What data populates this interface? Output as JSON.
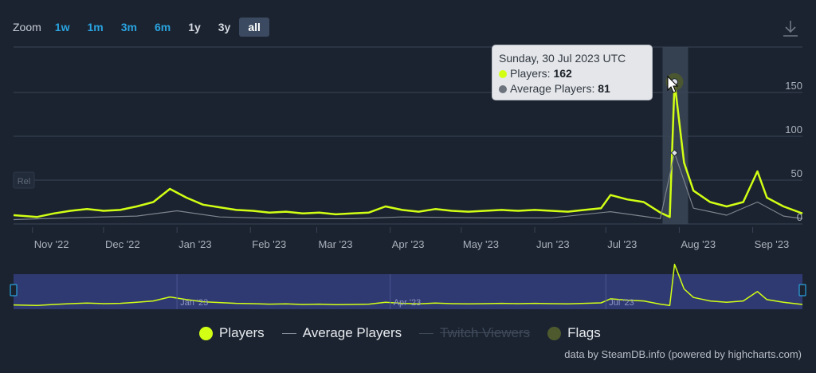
{
  "zoom": {
    "label": "Zoom",
    "buttons": [
      {
        "label": "1w",
        "kind": "short",
        "active": false
      },
      {
        "label": "1m",
        "kind": "short",
        "active": false
      },
      {
        "label": "3m",
        "kind": "short",
        "active": false
      },
      {
        "label": "6m",
        "kind": "short",
        "active": false
      },
      {
        "label": "1y",
        "kind": "long",
        "active": false
      },
      {
        "label": "3y",
        "kind": "long",
        "active": false
      },
      {
        "label": "all",
        "kind": "long",
        "active": true
      }
    ]
  },
  "tooltip": {
    "date": "Sunday, 30 Jul 2023 UTC",
    "players_label": "Players: ",
    "players_value": "162",
    "avg_label": "Average Players: ",
    "avg_value": "81"
  },
  "legend": {
    "players": "Players",
    "average": "Average Players",
    "twitch": "Twitch Viewers",
    "flags": "Flags"
  },
  "rel_label": "Rel",
  "credits": "data by SteamDB.info (powered by highcharts.com)",
  "colors": {
    "background": "#1b2330",
    "players": "#d2ff14",
    "average": "#7d848e",
    "navigator_fill": "#303a72",
    "grid": "#3a4455",
    "flags": "#4e5a2e"
  },
  "icons": {
    "download": "download-icon",
    "cursor": "cursor-pointer-icon"
  },
  "chart_data": {
    "type": "line",
    "x_range": [
      "2022-10-24",
      "2023-09-22"
    ],
    "ylim": [
      0,
      200
    ],
    "y_ticks": [
      0,
      50,
      100,
      150
    ],
    "x_ticks": [
      {
        "date": "2022-11-01",
        "label": "Nov '22"
      },
      {
        "date": "2022-12-01",
        "label": "Dec '22"
      },
      {
        "date": "2023-01-01",
        "label": "Jan '23"
      },
      {
        "date": "2023-02-01",
        "label": "Feb '23"
      },
      {
        "date": "2023-03-01",
        "label": "Mar '23"
      },
      {
        "date": "2023-04-01",
        "label": "Apr '23"
      },
      {
        "date": "2023-05-01",
        "label": "May '23"
      },
      {
        "date": "2023-06-01",
        "label": "Jun '23"
      },
      {
        "date": "2023-07-01",
        "label": "Jul '23"
      },
      {
        "date": "2023-08-01",
        "label": "Aug '23"
      },
      {
        "date": "2023-09-01",
        "label": "Sep '23"
      }
    ],
    "navigator_ticks": [
      {
        "date": "2023-01-01",
        "label": "Jan '23"
      },
      {
        "date": "2023-04-01",
        "label": "Apr '23"
      },
      {
        "date": "2023-07-01",
        "label": "Jul '23"
      }
    ],
    "highlight": {
      "date": "2023-07-30",
      "players": 162,
      "average": 81
    },
    "series": [
      {
        "name": "Players",
        "points": [
          [
            "2022-10-24",
            10
          ],
          [
            "2022-11-03",
            8
          ],
          [
            "2022-11-10",
            12
          ],
          [
            "2022-11-17",
            15
          ],
          [
            "2022-11-24",
            17
          ],
          [
            "2022-12-01",
            15
          ],
          [
            "2022-12-08",
            16
          ],
          [
            "2022-12-15",
            20
          ],
          [
            "2022-12-22",
            25
          ],
          [
            "2022-12-29",
            40
          ],
          [
            "2023-01-05",
            30
          ],
          [
            "2023-01-12",
            22
          ],
          [
            "2023-01-19",
            19
          ],
          [
            "2023-01-26",
            16
          ],
          [
            "2023-02-02",
            15
          ],
          [
            "2023-02-09",
            13
          ],
          [
            "2023-02-16",
            14
          ],
          [
            "2023-02-23",
            12
          ],
          [
            "2023-03-02",
            13
          ],
          [
            "2023-03-09",
            11
          ],
          [
            "2023-03-16",
            12
          ],
          [
            "2023-03-23",
            13
          ],
          [
            "2023-03-30",
            20
          ],
          [
            "2023-04-06",
            16
          ],
          [
            "2023-04-13",
            14
          ],
          [
            "2023-04-20",
            17
          ],
          [
            "2023-04-27",
            15
          ],
          [
            "2023-05-04",
            14
          ],
          [
            "2023-05-11",
            15
          ],
          [
            "2023-05-18",
            16
          ],
          [
            "2023-05-25",
            15
          ],
          [
            "2023-06-01",
            16
          ],
          [
            "2023-06-08",
            15
          ],
          [
            "2023-06-15",
            14
          ],
          [
            "2023-06-22",
            16
          ],
          [
            "2023-06-29",
            18
          ],
          [
            "2023-07-03",
            33
          ],
          [
            "2023-07-10",
            28
          ],
          [
            "2023-07-17",
            25
          ],
          [
            "2023-07-24",
            13
          ],
          [
            "2023-07-28",
            8
          ],
          [
            "2023-07-30",
            162
          ],
          [
            "2023-08-03",
            70
          ],
          [
            "2023-08-07",
            38
          ],
          [
            "2023-08-14",
            25
          ],
          [
            "2023-08-21",
            20
          ],
          [
            "2023-08-28",
            25
          ],
          [
            "2023-09-03",
            60
          ],
          [
            "2023-09-07",
            30
          ],
          [
            "2023-09-14",
            20
          ],
          [
            "2023-09-22",
            12
          ]
        ]
      },
      {
        "name": "Average Players",
        "points": [
          [
            "2022-10-24",
            5
          ],
          [
            "2022-11-17",
            7
          ],
          [
            "2022-12-15",
            9
          ],
          [
            "2023-01-01",
            15
          ],
          [
            "2023-01-19",
            8
          ],
          [
            "2023-02-16",
            6
          ],
          [
            "2023-03-16",
            6
          ],
          [
            "2023-04-06",
            8
          ],
          [
            "2023-05-11",
            7
          ],
          [
            "2023-06-08",
            7
          ],
          [
            "2023-07-03",
            14
          ],
          [
            "2023-07-24",
            6
          ],
          [
            "2023-07-30",
            81
          ],
          [
            "2023-08-07",
            18
          ],
          [
            "2023-08-21",
            10
          ],
          [
            "2023-09-03",
            25
          ],
          [
            "2023-09-14",
            9
          ],
          [
            "2023-09-22",
            6
          ]
        ]
      }
    ]
  }
}
